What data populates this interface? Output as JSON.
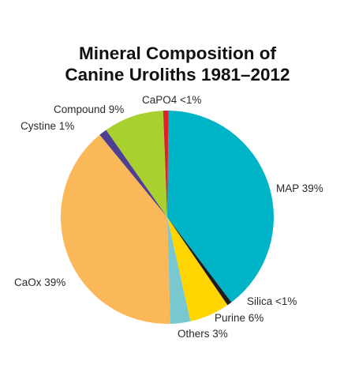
{
  "chart_data": {
    "type": "pie",
    "title_lines": [
      "Mineral Composition of",
      "Canine Uroliths 1981–2012"
    ],
    "slices": [
      {
        "name": "MAP",
        "label": "MAP 39%",
        "value": 39,
        "color": "#00b4c8"
      },
      {
        "name": "Silica",
        "label": "Silica <1%",
        "value": 0.7,
        "color": "#1c1c1c"
      },
      {
        "name": "Purine",
        "label": "Purine 6%",
        "value": 6,
        "color": "#ffd500"
      },
      {
        "name": "Others",
        "label": "Others 3%",
        "value": 3,
        "color": "#79c8cf"
      },
      {
        "name": "CaOx",
        "label": "CaOx 39%",
        "value": 39,
        "color": "#fbb859"
      },
      {
        "name": "Cystine",
        "label": "Cystine 1%",
        "value": 1.2,
        "color": "#4f3f93"
      },
      {
        "name": "Compound",
        "label": "Compound 9%",
        "value": 9,
        "color": "#a8d12f"
      },
      {
        "name": "CaPO4",
        "label": "CaPO4 <1%",
        "value": 0.8,
        "color": "#d9232d"
      }
    ]
  }
}
